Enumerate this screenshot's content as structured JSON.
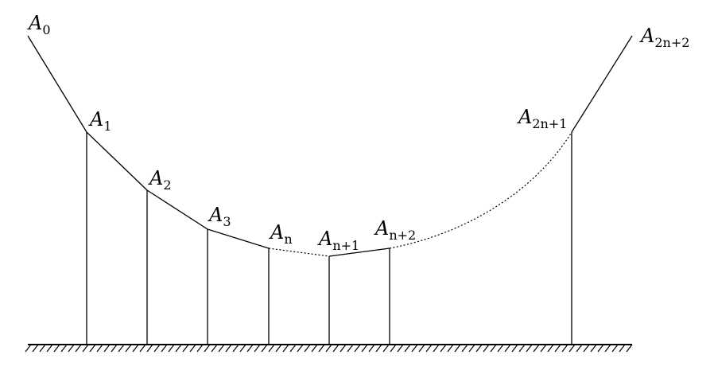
{
  "points": [
    {
      "id": "A0",
      "base": "A",
      "sub": "0"
    },
    {
      "id": "A1",
      "base": "A",
      "sub": "1"
    },
    {
      "id": "A2",
      "base": "A",
      "sub": "2"
    },
    {
      "id": "A3",
      "base": "A",
      "sub": "3"
    },
    {
      "id": "An",
      "base": "A",
      "sub": "n"
    },
    {
      "id": "An1",
      "base": "A",
      "sub": "n+1"
    },
    {
      "id": "An2",
      "base": "A",
      "sub": "n+2"
    },
    {
      "id": "A2n1",
      "base": "A",
      "sub": "2n+1"
    },
    {
      "id": "A2n2",
      "base": "A",
      "sub": "2n+2"
    }
  ]
}
